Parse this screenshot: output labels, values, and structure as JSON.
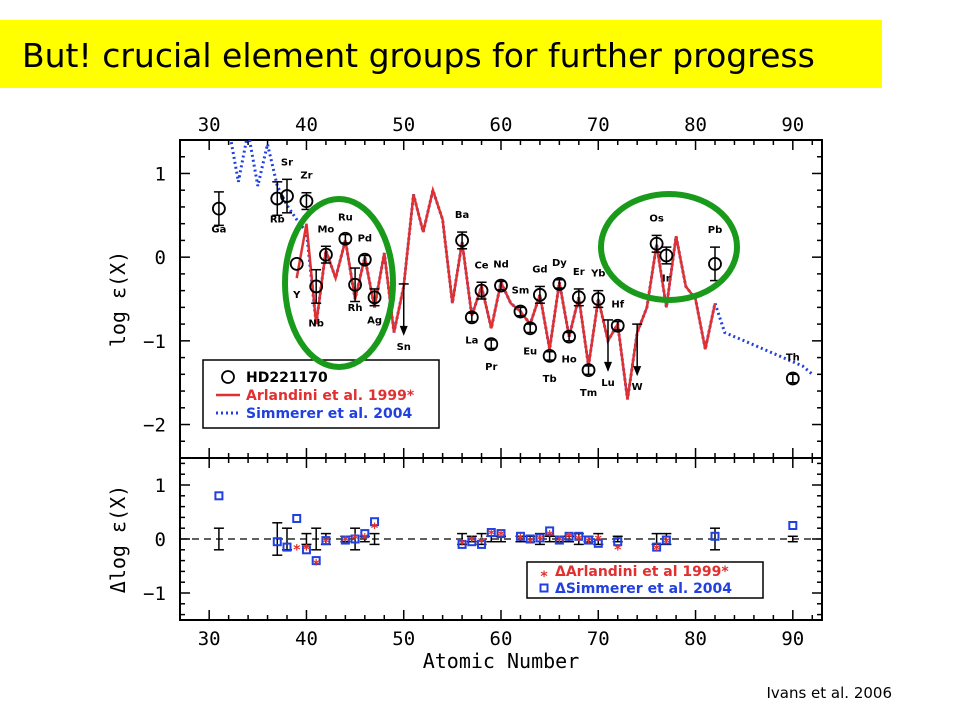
{
  "slide": {
    "title": "But!  crucial element groups for further progress",
    "credit": "Ivans et al. 2006",
    "highlight_color": "#ffff00",
    "circle_color": "#1a9a1a"
  },
  "chart_data": [
    {
      "type": "scatter",
      "panel": "top",
      "xlim": [
        27,
        93
      ],
      "ylim": [
        -2.4,
        1.4
      ],
      "x_ticks": [
        30,
        40,
        50,
        60,
        70,
        80,
        90
      ],
      "y_ticks": [
        1,
        0,
        -1,
        -2
      ],
      "y_tick_labels": [
        "1",
        "0",
        "−1",
        "−2"
      ],
      "ylabel": "log ε(X)",
      "grid": false,
      "legend_position": "bottom-left",
      "series": [
        {
          "name": "HD221170",
          "marker": "open-circle",
          "color": "#000000",
          "points": [
            {
              "x": 31,
              "y": 0.58,
              "err": 0.2,
              "label": "Ga"
            },
            {
              "x": 37,
              "y": 0.7,
              "err": 0.2,
              "label": "Rb"
            },
            {
              "x": 38,
              "y": 0.73,
              "err": 0.2,
              "label": "Sr"
            },
            {
              "x": 39,
              "y": -0.08,
              "err": 0.0,
              "label": "Y"
            },
            {
              "x": 40,
              "y": 0.67,
              "err": 0.1,
              "label": "Zr"
            },
            {
              "x": 41,
              "y": -0.35,
              "err": 0.2,
              "label": "Nb"
            },
            {
              "x": 42,
              "y": 0.03,
              "err": 0.1,
              "label": "Mo"
            },
            {
              "x": 44,
              "y": 0.22,
              "err": 0.05,
              "label": "Ru"
            },
            {
              "x": 45,
              "y": -0.33,
              "err": 0.2,
              "label": "Rh"
            },
            {
              "x": 46,
              "y": -0.03,
              "err": 0.05,
              "label": "Pd"
            },
            {
              "x": 47,
              "y": -0.48,
              "err": 0.1,
              "label": "Ag"
            },
            {
              "x": 50,
              "y": -0.32,
              "err": 0.0,
              "label": "Sn",
              "upper_limit": true
            },
            {
              "x": 56,
              "y": 0.2,
              "err": 0.1,
              "label": "Ba"
            },
            {
              "x": 57,
              "y": -0.72,
              "err": 0.05,
              "label": "La"
            },
            {
              "x": 58,
              "y": -0.4,
              "err": 0.1,
              "label": "Ce"
            },
            {
              "x": 59,
              "y": -1.04,
              "err": 0.05,
              "label": "Pr"
            },
            {
              "x": 60,
              "y": -0.34,
              "err": 0.05,
              "label": "Nd"
            },
            {
              "x": 62,
              "y": -0.65,
              "err": 0.05,
              "label": "Sm"
            },
            {
              "x": 63,
              "y": -0.85,
              "err": 0.05,
              "label": "Eu"
            },
            {
              "x": 64,
              "y": -0.45,
              "err": 0.1,
              "label": "Gd"
            },
            {
              "x": 65,
              "y": -1.18,
              "err": 0.05,
              "label": "Tb"
            },
            {
              "x": 66,
              "y": -0.32,
              "err": 0.05,
              "label": "Dy"
            },
            {
              "x": 67,
              "y": -0.95,
              "err": 0.05,
              "label": "Ho"
            },
            {
              "x": 68,
              "y": -0.48,
              "err": 0.1,
              "label": "Er"
            },
            {
              "x": 69,
              "y": -1.35,
              "err": 0.05,
              "label": "Tm"
            },
            {
              "x": 70,
              "y": -0.5,
              "err": 0.1,
              "label": "Yb"
            },
            {
              "x": 71,
              "y": -0.75,
              "err": 0.0,
              "label": "Lu",
              "upper_limit": true
            },
            {
              "x": 72,
              "y": -0.82,
              "err": 0.05,
              "label": "Hf"
            },
            {
              "x": 74,
              "y": -0.8,
              "err": 0.0,
              "label": "W",
              "upper_limit": true
            },
            {
              "x": 76,
              "y": 0.16,
              "err": 0.1,
              "label": "Os"
            },
            {
              "x": 77,
              "y": 0.02,
              "err": 0.1,
              "label": "Ir"
            },
            {
              "x": 82,
              "y": -0.08,
              "err": 0.2,
              "label": "Pb"
            },
            {
              "x": 90,
              "y": -1.45,
              "err": 0.05,
              "label": "Th"
            }
          ]
        },
        {
          "name": "Arlandini et al. 1999*",
          "style": "solid-line",
          "color": "#e03030",
          "x": [
            39,
            40,
            41,
            42,
            43,
            44,
            45,
            46,
            47,
            48,
            49,
            50,
            51,
            52,
            53,
            54,
            55,
            56,
            57,
            58,
            59,
            60,
            61,
            62,
            63,
            64,
            65,
            66,
            67,
            68,
            69,
            70,
            71,
            72,
            73,
            74,
            75,
            76,
            77,
            78,
            79,
            80,
            81,
            82
          ],
          "y": [
            -0.25,
            0.4,
            -0.8,
            0.08,
            -0.25,
            0.2,
            -0.5,
            0.0,
            -0.6,
            0.05,
            -0.9,
            -0.35,
            0.75,
            0.3,
            0.8,
            0.45,
            -0.55,
            0.18,
            -0.7,
            -0.35,
            -0.85,
            -0.3,
            -0.55,
            -0.65,
            -0.8,
            -0.45,
            -1.1,
            -0.3,
            -0.95,
            -0.48,
            -1.3,
            -0.5,
            -1.0,
            -0.8,
            -1.7,
            -0.9,
            -0.6,
            0.15,
            -0.6,
            0.25,
            -0.35,
            -0.5,
            -1.1,
            -0.55
          ]
        },
        {
          "name": "Simmerer et al. 2004",
          "style": "dotted-line",
          "color": "#2040e0",
          "x": [
            32,
            33,
            34,
            35,
            36,
            37,
            38,
            39,
            40,
            41,
            42,
            43,
            44,
            45,
            46,
            47,
            48,
            49,
            50,
            51,
            52,
            53,
            54,
            55,
            56,
            57,
            58,
            59,
            60,
            61,
            62,
            63,
            64,
            65,
            66,
            67,
            68,
            69,
            70,
            71,
            72,
            73,
            74,
            75,
            76,
            77,
            78,
            79,
            80,
            81,
            82,
            83,
            84,
            85,
            86,
            87,
            88,
            89,
            90,
            91,
            92
          ],
          "y": [
            1.55,
            0.9,
            1.5,
            0.85,
            1.35,
            0.85,
            0.62,
            0.45,
            0.3,
            -0.8,
            0.08,
            -0.25,
            0.2,
            -0.5,
            0.0,
            -0.6,
            0.05,
            -0.9,
            -0.35,
            0.75,
            0.3,
            0.8,
            0.45,
            -0.55,
            0.18,
            -0.7,
            -0.35,
            -0.85,
            -0.3,
            -0.55,
            -0.65,
            -0.8,
            -0.45,
            -1.1,
            -0.3,
            -0.95,
            -0.48,
            -1.3,
            -0.5,
            -1.0,
            -0.8,
            -1.7,
            -0.9,
            -0.6,
            0.15,
            -0.6,
            0.25,
            -0.35,
            -0.5,
            -1.1,
            -0.55,
            -0.9,
            -0.95,
            -1.0,
            -1.05,
            -1.1,
            -1.15,
            -1.2,
            -1.25,
            -1.3,
            -1.4
          ]
        }
      ]
    },
    {
      "type": "scatter",
      "panel": "bottom",
      "xlim": [
        27,
        93
      ],
      "ylim": [
        -1.5,
        1.5
      ],
      "x_ticks": [
        30,
        40,
        50,
        60,
        70,
        80,
        90
      ],
      "y_ticks": [
        1,
        0,
        -1
      ],
      "y_tick_labels": [
        "1",
        "0",
        "−1"
      ],
      "xlabel": "Atomic Number",
      "ylabel": "Δlog ε(X)",
      "zero_line": "dashed",
      "legend_position": "bottom-right",
      "errorbars": [
        {
          "x": 31,
          "err": 0.2
        },
        {
          "x": 37,
          "err": 0.3
        },
        {
          "x": 38,
          "err": 0.2
        },
        {
          "x": 40,
          "err": 0.1
        },
        {
          "x": 41,
          "err": 0.2
        },
        {
          "x": 42,
          "err": 0.1
        },
        {
          "x": 44,
          "err": 0.05
        },
        {
          "x": 45,
          "err": 0.2
        },
        {
          "x": 46,
          "err": 0.05
        },
        {
          "x": 47,
          "err": 0.1
        },
        {
          "x": 56,
          "err": 0.1
        },
        {
          "x": 57,
          "err": 0.05
        },
        {
          "x": 58,
          "err": 0.1
        },
        {
          "x": 59,
          "err": 0.05
        },
        {
          "x": 60,
          "err": 0.05
        },
        {
          "x": 62,
          "err": 0.05
        },
        {
          "x": 63,
          "err": 0.05
        },
        {
          "x": 64,
          "err": 0.1
        },
        {
          "x": 65,
          "err": 0.05
        },
        {
          "x": 66,
          "err": 0.05
        },
        {
          "x": 67,
          "err": 0.05
        },
        {
          "x": 68,
          "err": 0.1
        },
        {
          "x": 69,
          "err": 0.05
        },
        {
          "x": 70,
          "err": 0.1
        },
        {
          "x": 72,
          "err": 0.05
        },
        {
          "x": 76,
          "err": 0.1
        },
        {
          "x": 77,
          "err": 0.1
        },
        {
          "x": 82,
          "err": 0.2
        },
        {
          "x": 90,
          "err": 0.05
        }
      ],
      "series": [
        {
          "name": "ΔArlandini et al 1999*",
          "marker": "asterisk",
          "color": "#e03030",
          "points": [
            [
              39,
              -0.18
            ],
            [
              40,
              -0.18
            ],
            [
              41,
              -0.45
            ],
            [
              42,
              -0.05
            ],
            [
              44,
              -0.02
            ],
            [
              45,
              0.02
            ],
            [
              46,
              0.03
            ],
            [
              47,
              0.22
            ],
            [
              56,
              -0.08
            ],
            [
              57,
              -0.02
            ],
            [
              58,
              -0.05
            ],
            [
              59,
              0.1
            ],
            [
              60,
              0.08
            ],
            [
              62,
              0.02
            ],
            [
              63,
              -0.05
            ],
            [
              64,
              0.0
            ],
            [
              65,
              0.08
            ],
            [
              66,
              -0.02
            ],
            [
              67,
              0.05
            ],
            [
              68,
              0.0
            ],
            [
              69,
              -0.05
            ],
            [
              70,
              0.0
            ],
            [
              72,
              -0.18
            ],
            [
              76,
              -0.18
            ],
            [
              77,
              -0.05
            ]
          ]
        },
        {
          "name": "ΔSimmerer et al. 2004",
          "marker": "open-square",
          "color": "#2040e0",
          "points": [
            [
              31,
              0.8
            ],
            [
              37,
              -0.05
            ],
            [
              38,
              -0.15
            ],
            [
              39,
              0.38
            ],
            [
              40,
              -0.2
            ],
            [
              41,
              -0.4
            ],
            [
              42,
              -0.03
            ],
            [
              44,
              -0.02
            ],
            [
              45,
              0.0
            ],
            [
              46,
              0.1
            ],
            [
              47,
              0.32
            ],
            [
              56,
              -0.1
            ],
            [
              57,
              -0.05
            ],
            [
              58,
              -0.1
            ],
            [
              59,
              0.12
            ],
            [
              60,
              0.1
            ],
            [
              62,
              0.05
            ],
            [
              63,
              0.0
            ],
            [
              64,
              0.02
            ],
            [
              65,
              0.15
            ],
            [
              66,
              -0.02
            ],
            [
              67,
              0.05
            ],
            [
              68,
              0.05
            ],
            [
              69,
              -0.02
            ],
            [
              70,
              -0.08
            ],
            [
              72,
              -0.05
            ],
            [
              76,
              -0.15
            ],
            [
              77,
              -0.02
            ],
            [
              82,
              0.05
            ],
            [
              90,
              0.25
            ]
          ]
        }
      ]
    }
  ]
}
